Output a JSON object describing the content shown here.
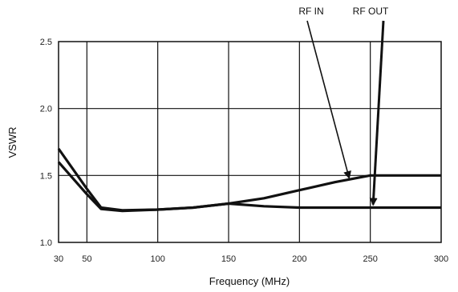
{
  "chart_data": {
    "type": "line",
    "title": "",
    "xlabel": "Frequency (MHz)",
    "ylabel": "VSWR",
    "xlim": [
      30,
      300
    ],
    "ylim": [
      1.0,
      2.5
    ],
    "x_ticks": [
      30,
      50,
      100,
      150,
      200,
      250,
      300
    ],
    "x_tick_labels": [
      "30",
      "50",
      "100",
      "150",
      "200",
      "250",
      "300"
    ],
    "y_ticks": [
      1.0,
      1.5,
      2.0,
      2.5
    ],
    "y_tick_labels": [
      "1.0",
      "1.5",
      "2.0",
      "2.5"
    ],
    "x_grid_lines": [
      50,
      100,
      150,
      200,
      250
    ],
    "grid": true,
    "series": [
      {
        "name": "RF IN",
        "x": [
          30,
          50,
          60,
          75,
          100,
          125,
          150,
          175,
          200,
          225,
          250,
          275,
          300
        ],
        "y": [
          1.7,
          1.4,
          1.26,
          1.24,
          1.245,
          1.26,
          1.29,
          1.33,
          1.39,
          1.45,
          1.5,
          1.5,
          1.5
        ]
      },
      {
        "name": "RF OUT",
        "x": [
          30,
          50,
          60,
          75,
          100,
          125,
          150,
          175,
          200,
          225,
          250,
          275,
          300
        ],
        "y": [
          1.6,
          1.36,
          1.25,
          1.235,
          1.245,
          1.26,
          1.29,
          1.27,
          1.26,
          1.26,
          1.26,
          1.26,
          1.26
        ]
      }
    ],
    "annotations": [
      {
        "text": "RF IN",
        "points_to": {
          "x": 235,
          "y": 1.46
        }
      },
      {
        "text": "RF OUT",
        "points_to": {
          "x": 252,
          "y": 1.26
        }
      }
    ],
    "colors": {
      "line": "#111111",
      "grid": "#111111",
      "background": "#ffffff"
    }
  }
}
